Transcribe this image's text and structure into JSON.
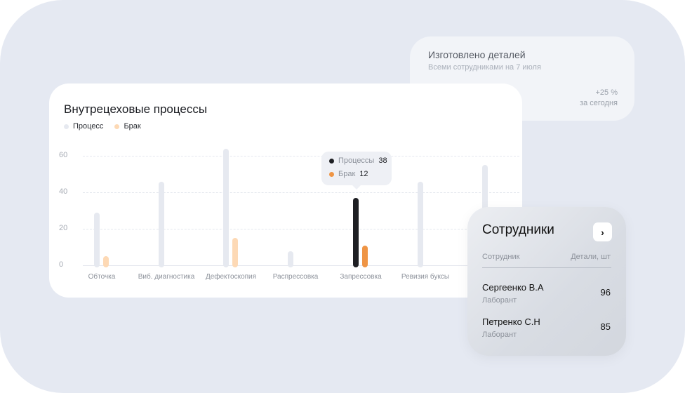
{
  "stat_card": {
    "title": "Изготовлено деталей",
    "subtitle": "Всеми сотрудниками на 7 июля",
    "change": "+25 %",
    "period": "за сегодня"
  },
  "colors": {
    "process": "#e6e9f0",
    "defect": "#fdd9b5",
    "process_active": "#1e1f23",
    "defect_active": "#ef9545"
  },
  "chart_data": {
    "type": "bar",
    "title": "Внутрецеховые процессы",
    "legend": [
      "Процесс",
      "Брак"
    ],
    "categories": [
      "Обточка",
      "Виб. диагностика",
      "Дефектоскопия",
      "Распрессовка",
      "Запрессовка",
      "Ревизия буксы",
      ""
    ],
    "series": [
      {
        "name": "Процесс",
        "values": [
          30,
          47,
          65,
          9,
          38,
          47,
          56
        ]
      },
      {
        "name": "Брак",
        "values": [
          6,
          0,
          16,
          0,
          12,
          0,
          0
        ]
      }
    ],
    "yticks": [
      "0",
      "20",
      "40",
      "60"
    ],
    "ylim": [
      0,
      66
    ],
    "grid": true,
    "legend_position": "top-left",
    "highlighted_index": 4,
    "tooltip": {
      "process_label": "Процессы",
      "process_value": "38",
      "defect_label": "Брак",
      "defect_value": "12"
    }
  },
  "employees": {
    "title": "Сотрудники",
    "col_employee": "Сотрудник",
    "col_parts": "Детали, шт",
    "rows": [
      {
        "name": "Сергеенко В.А",
        "role": "Лаборант",
        "parts": "96"
      },
      {
        "name": "Петренко С.Н",
        "role": "Лаборант",
        "parts": "85"
      }
    ]
  }
}
